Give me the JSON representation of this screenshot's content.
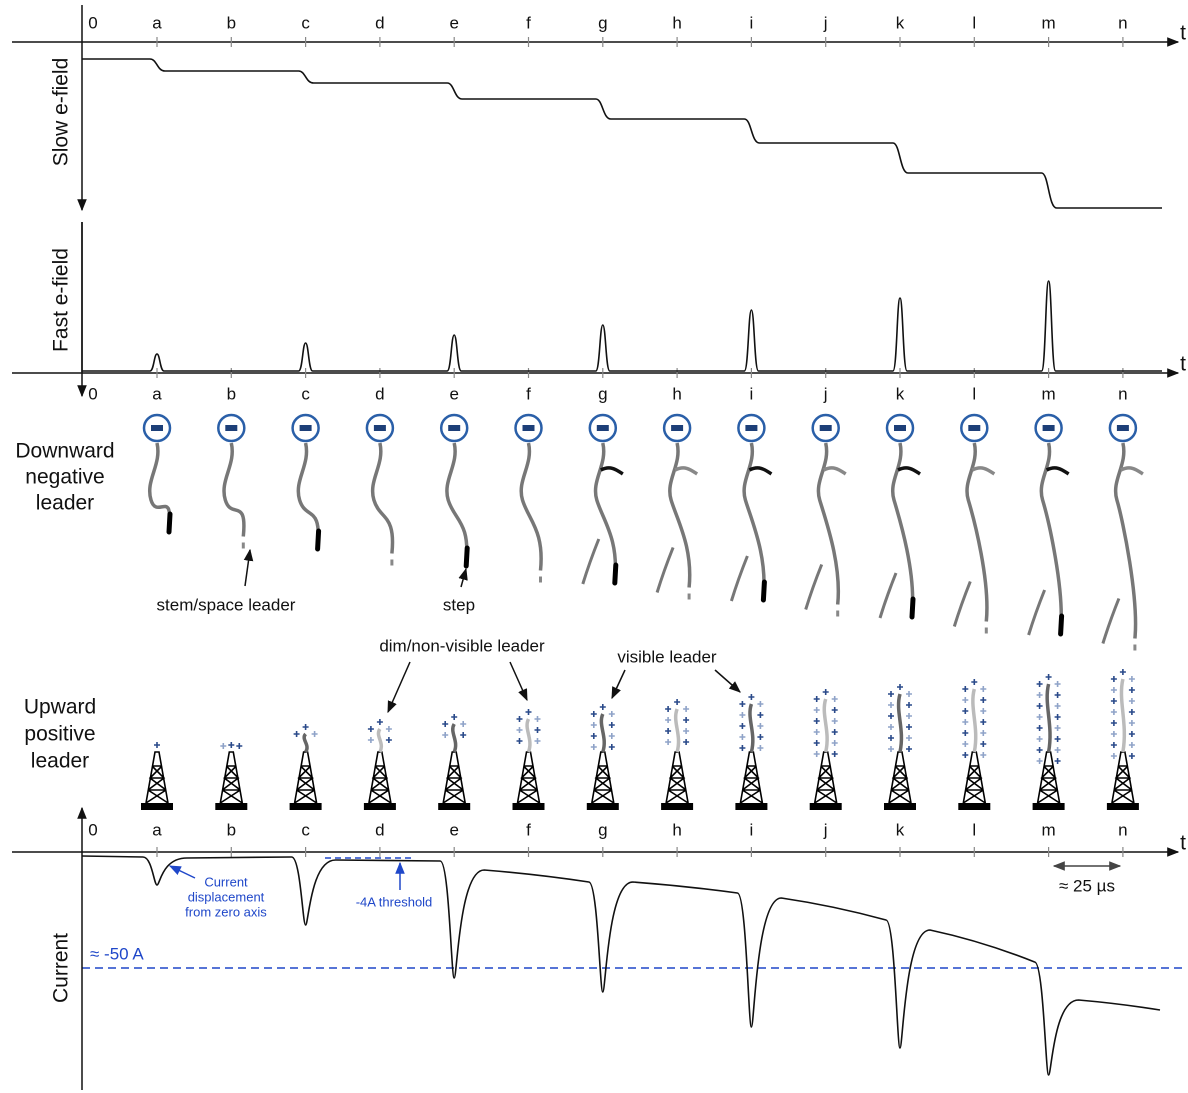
{
  "time_axis": {
    "origin": "0",
    "labels": [
      "a",
      "b",
      "c",
      "d",
      "e",
      "f",
      "g",
      "h",
      "i",
      "j",
      "k",
      "l",
      "m",
      "n"
    ],
    "end": "t"
  },
  "panels": {
    "slow": "Slow e-field",
    "fast": "Fast e-field",
    "current": "Current"
  },
  "downward": {
    "label": [
      "Downward",
      "negative",
      "leader"
    ],
    "annotations": [
      "stem/space leader",
      "step"
    ]
  },
  "upward": {
    "label": [
      "Upward",
      "positive",
      "leader"
    ],
    "annotations": [
      "dim/non-visible leader",
      "visible leader"
    ]
  },
  "current_annotations": {
    "displacement": [
      "Current",
      "displacement",
      "from zero axis"
    ],
    "threshold": "-4A threshold",
    "level": "≈ -50 A",
    "interval": "≈ 25 µs"
  }
}
